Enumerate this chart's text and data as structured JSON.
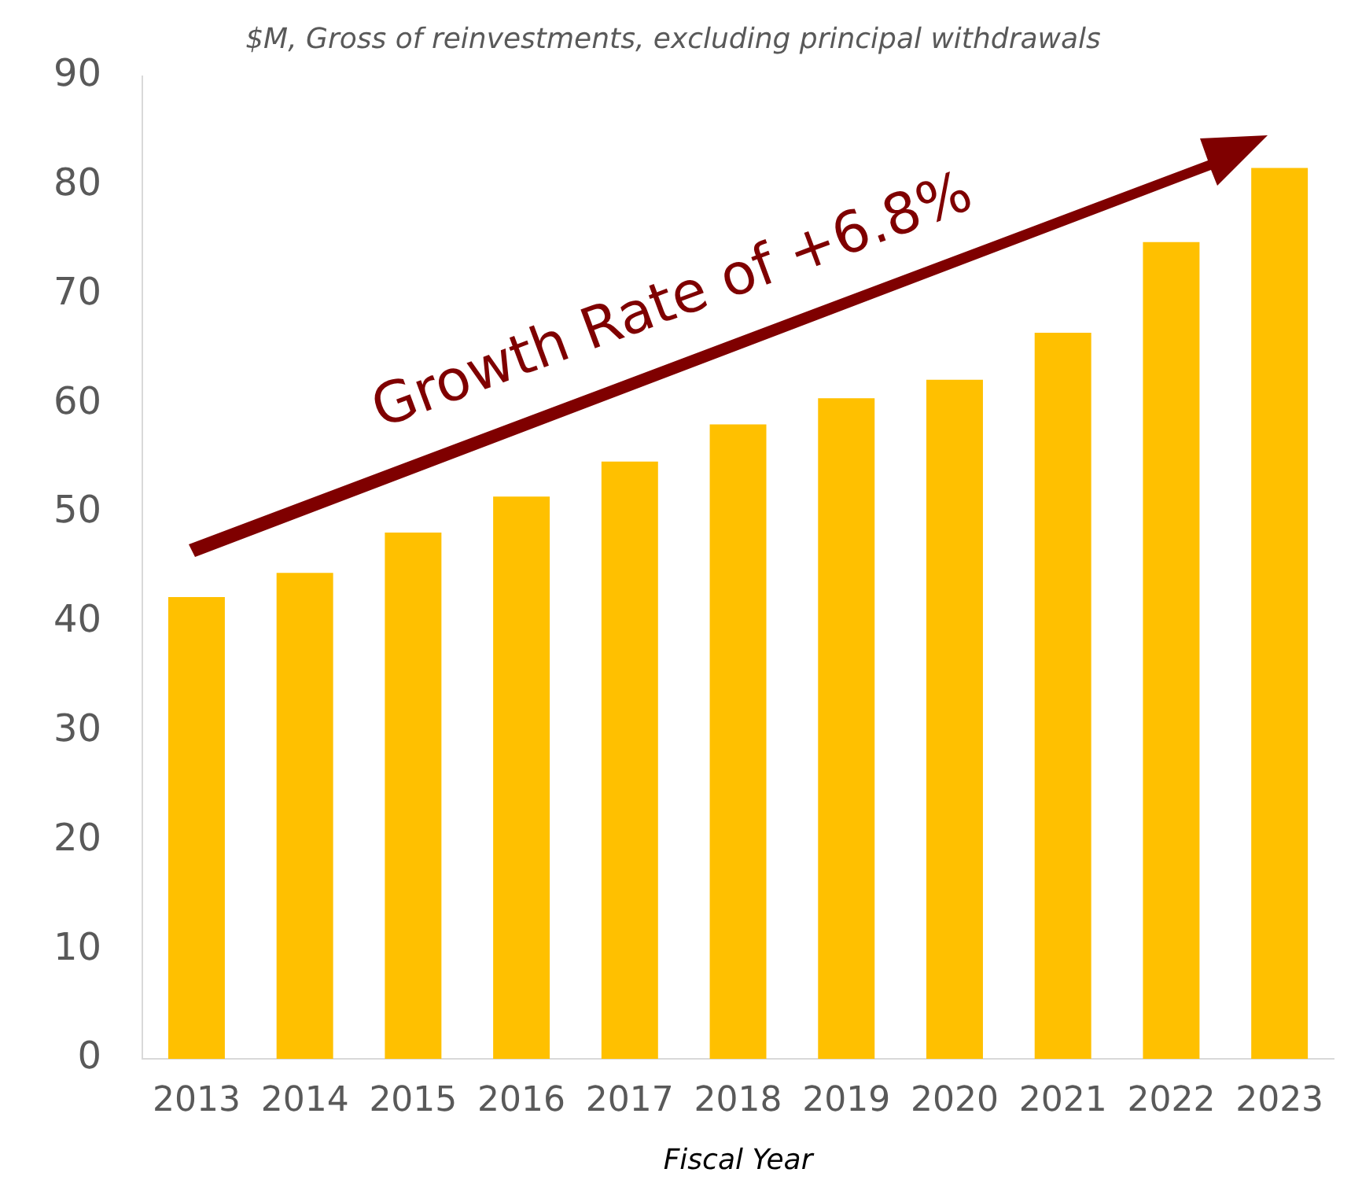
{
  "chart_data": {
    "type": "bar",
    "title": "$M, Gross of reinvestments, excluding principal withdrawals",
    "xlabel": "Fiscal Year",
    "categories": [
      "2013",
      "2014",
      "2015",
      "2016",
      "2017",
      "2018",
      "2019",
      "2020",
      "2021",
      "2022",
      "2023"
    ],
    "values": [
      42.3,
      44.5,
      48.2,
      51.5,
      54.7,
      58.1,
      60.5,
      62.2,
      66.5,
      74.8,
      81.6
    ],
    "color": "#ffc000",
    "ylim": [
      0,
      90
    ],
    "yticks": [
      0,
      10,
      20,
      30,
      40,
      50,
      60,
      70,
      80,
      90
    ],
    "grid": false,
    "legend": false,
    "annotations": [
      "Growth Rate of +6.8%"
    ]
  }
}
